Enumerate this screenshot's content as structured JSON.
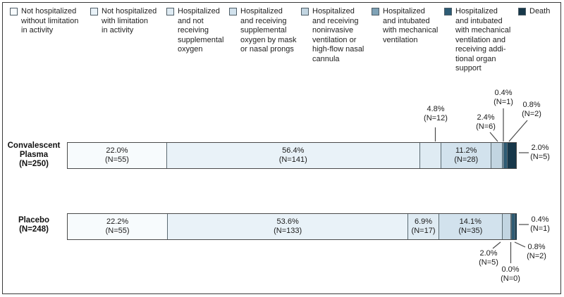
{
  "legend": {
    "items": [
      {
        "label": "Not hospitalized\nwithout limitation\nin activity"
      },
      {
        "label": "Not hospitalized\nwith limitation\nin activity"
      },
      {
        "label": "Hospitalized\nand not\nreceiving\nsupplemental\noxygen"
      },
      {
        "label": "Hospitalized\nand receiving\nsupplemental\noxygen by mask\nor nasal prongs"
      },
      {
        "label": "Hospitalized\nand receiving\nnoninvasive\nventilation or\nhigh-flow nasal\ncannula"
      },
      {
        "label": "Hospitalized\nand intubated\nwith mechanical\nventilation"
      },
      {
        "label": "Hospitalized\nand intubated\nwith mechanical\nventilation and\nreceiving addi-\ntional organ\nsupport"
      },
      {
        "label": "Death"
      }
    ]
  },
  "bars": {
    "convalescent_label": "Convalescent\nPlasma\n(N=250)",
    "placebo_label": "Placebo\n(N=248)"
  },
  "callouts": {
    "cp_seg3": "4.8%\n(N=12)",
    "cp_seg5": "2.4%\n(N=6)",
    "cp_seg6": "0.4%\n(N=1)",
    "cp_seg7": "0.8%\n(N=2)",
    "cp_seg8": "2.0%\n(N=5)",
    "pl_seg5": "2.0%\n(N=5)",
    "pl_seg6": "0.0%\n(N=0)",
    "pl_seg7": "0.8%\n(N=2)",
    "pl_seg8": "0.4%\n(N=1)"
  },
  "chart_data": {
    "type": "bar",
    "stacked": true,
    "orientation": "horizontal",
    "unit": "%",
    "categories": [
      "Not hospitalized without limitation in activity",
      "Not hospitalized with limitation in activity",
      "Hospitalized and not receiving supplemental oxygen",
      "Hospitalized and receiving supplemental oxygen by mask or nasal prongs",
      "Hospitalized and receiving noninvasive ventilation or high-flow nasal cannula",
      "Hospitalized and intubated with mechanical ventilation",
      "Hospitalized and intubated with mechanical ventilation and receiving additional organ support",
      "Death"
    ],
    "palette": [
      "#f7fbfd",
      "#e9f2f8",
      "#dfebf3",
      "#d2e2ed",
      "#c2d5e1",
      "#7fa2b6",
      "#2e5c75",
      "#17384a"
    ],
    "series": [
      {
        "name": "Convalescent Plasma",
        "n": 250,
        "values": [
          22.0,
          56.4,
          4.8,
          11.2,
          2.4,
          0.4,
          0.8,
          2.0
        ],
        "counts": [
          55,
          141,
          12,
          28,
          6,
          1,
          2,
          5
        ],
        "in_bar_labels": [
          "22.0%\n(N=55)",
          "56.4%\n(N=141)",
          null,
          "11.2%\n(N=28)",
          null,
          null,
          null,
          null
        ]
      },
      {
        "name": "Placebo",
        "n": 248,
        "values": [
          22.2,
          53.6,
          6.9,
          14.1,
          2.0,
          0.0,
          0.8,
          0.4
        ],
        "counts": [
          55,
          133,
          17,
          35,
          5,
          0,
          2,
          1
        ],
        "in_bar_labels": [
          "22.2%\n(N=55)",
          "53.6%\n(N=133)",
          "6.9%\n(N=17)",
          "14.1%\n(N=35)",
          null,
          null,
          null,
          null
        ]
      }
    ],
    "legend_position": "top",
    "grid": false
  }
}
